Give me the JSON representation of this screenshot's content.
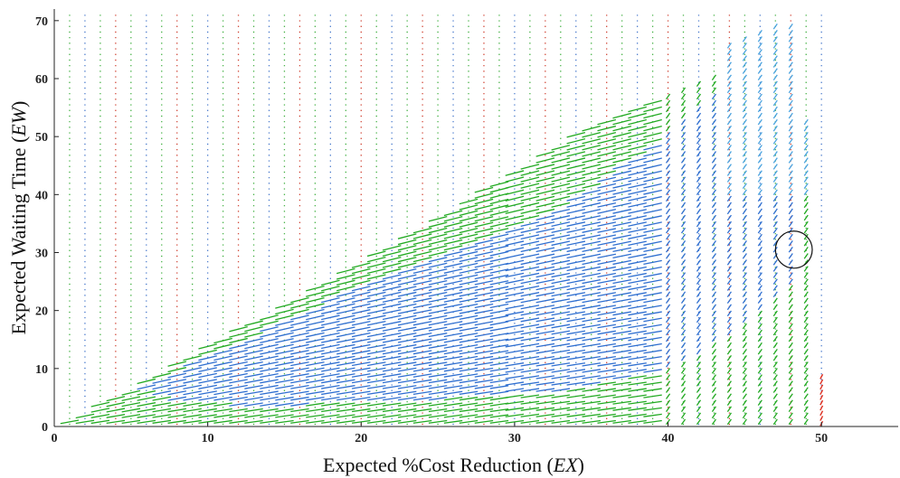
{
  "chart_data": {
    "type": "scatter",
    "xlabel": "Expected %Cost Reduction (",
    "xlabel_var": "EX",
    "xlabel_end": ")",
    "ylabel": "Expected Waiting Time (",
    "ylabel_var": "EW",
    "ylabel_end": ")",
    "xlim": [
      0,
      55
    ],
    "ylim": [
      0,
      72
    ],
    "x_ticks": [
      0,
      10,
      20,
      30,
      40,
      50
    ],
    "y_ticks": [
      0,
      10,
      20,
      30,
      40,
      50,
      60,
      70
    ],
    "grid": false,
    "legend": "none",
    "colors": {
      "green": "#22aa22",
      "blue": "#2f6fd0",
      "lightblue": "#4aa3df",
      "red": "#e03020",
      "dots_green": "#33aa33",
      "dots_blue": "#3a6fc8",
      "dots_red": "#cc3322"
    },
    "column_x": [
      1,
      2,
      3,
      4,
      5,
      6,
      7,
      8,
      9,
      10,
      11,
      12,
      13,
      14,
      15,
      16,
      17,
      18,
      19,
      20,
      21,
      22,
      23,
      24,
      25,
      26,
      27,
      28,
      29,
      30,
      31,
      32,
      33,
      34,
      35,
      36,
      37,
      38,
      39,
      40,
      41,
      42,
      43,
      44,
      45,
      46,
      47,
      48,
      49,
      50
    ],
    "dot_column_top": 71,
    "envelope": {
      "x": [
        1,
        2,
        3,
        4,
        5,
        6,
        7,
        8,
        9,
        10,
        11,
        12,
        13,
        14,
        15,
        16,
        17,
        18,
        19,
        20,
        21,
        22,
        23,
        24,
        25,
        26,
        27,
        28,
        29,
        30,
        31,
        32,
        33,
        34,
        35,
        36,
        37,
        38,
        39,
        40,
        41,
        42,
        43,
        44,
        45,
        46,
        47,
        48,
        49,
        50
      ],
      "top": [
        1.2,
        2.5,
        3.8,
        5.0,
        6.5,
        8.0,
        9.6,
        11.2,
        12.6,
        14.0,
        15.3,
        16.8,
        18.2,
        19.6,
        21.0,
        22.5,
        23.9,
        25.3,
        26.8,
        28.2,
        29.8,
        31.3,
        32.9,
        34.5,
        36.1,
        37.7,
        39.3,
        40.9,
        42.5,
        44.1,
        45.8,
        47.5,
        49.2,
        50.9,
        52.2,
        53.5,
        54.5,
        55.5,
        56.5,
        57.5,
        58.5,
        59.5,
        61.0,
        66.0,
        67.5,
        69.0,
        70.0,
        70.0,
        53.0,
        10.0
      ]
    },
    "blue_region": {
      "x": [
        6,
        7,
        8,
        9,
        10,
        11,
        12,
        13,
        14,
        15,
        16,
        17,
        18,
        19,
        20,
        21,
        22,
        23,
        24,
        25,
        26,
        27,
        28,
        29,
        30,
        31,
        32,
        33,
        34,
        35,
        36,
        37,
        38,
        39,
        40,
        41,
        42,
        43,
        44,
        45,
        46,
        47,
        48
      ],
      "low": [
        6.5,
        5.5,
        4.8,
        4.5,
        4.2,
        4.0,
        3.8,
        3.8,
        3.8,
        3.8,
        3.8,
        4.0,
        4.0,
        4.0,
        4.2,
        4.2,
        4.5,
        4.5,
        4.5,
        4.8,
        5.0,
        5.0,
        5.2,
        5.5,
        5.5,
        5.8,
        6.0,
        6.2,
        6.5,
        7.0,
        7.5,
        8.0,
        8.5,
        9.0,
        10.0,
        11.0,
        12.0,
        14.0,
        16.0,
        18.0,
        20.0,
        22.0,
        24.0
      ],
      "high": [
        7.0,
        8.0,
        9.5,
        11.0,
        12.0,
        13.0,
        14.5,
        15.5,
        17.0,
        18.0,
        19.5,
        20.5,
        22.0,
        23.0,
        24.0,
        25.5,
        26.5,
        27.5,
        28.5,
        29.5,
        30.5,
        31.5,
        32.5,
        33.5,
        34.5,
        35.5,
        36.5,
        38.0,
        39.5,
        41.0,
        43.0,
        45.0,
        47.0,
        49.0,
        51.0,
        53.0,
        55.0,
        57.0,
        60.0,
        62.0,
        64.0,
        66.0,
        68.0
      ]
    },
    "red_segment": {
      "x": 50,
      "y_low": 0.5,
      "y_high": 9.0
    },
    "annotation": {
      "shape": "ellipse",
      "center_x": 48.2,
      "center_y": 30.5,
      "radius_x": 1.2,
      "radius_y": 3.2
    }
  }
}
